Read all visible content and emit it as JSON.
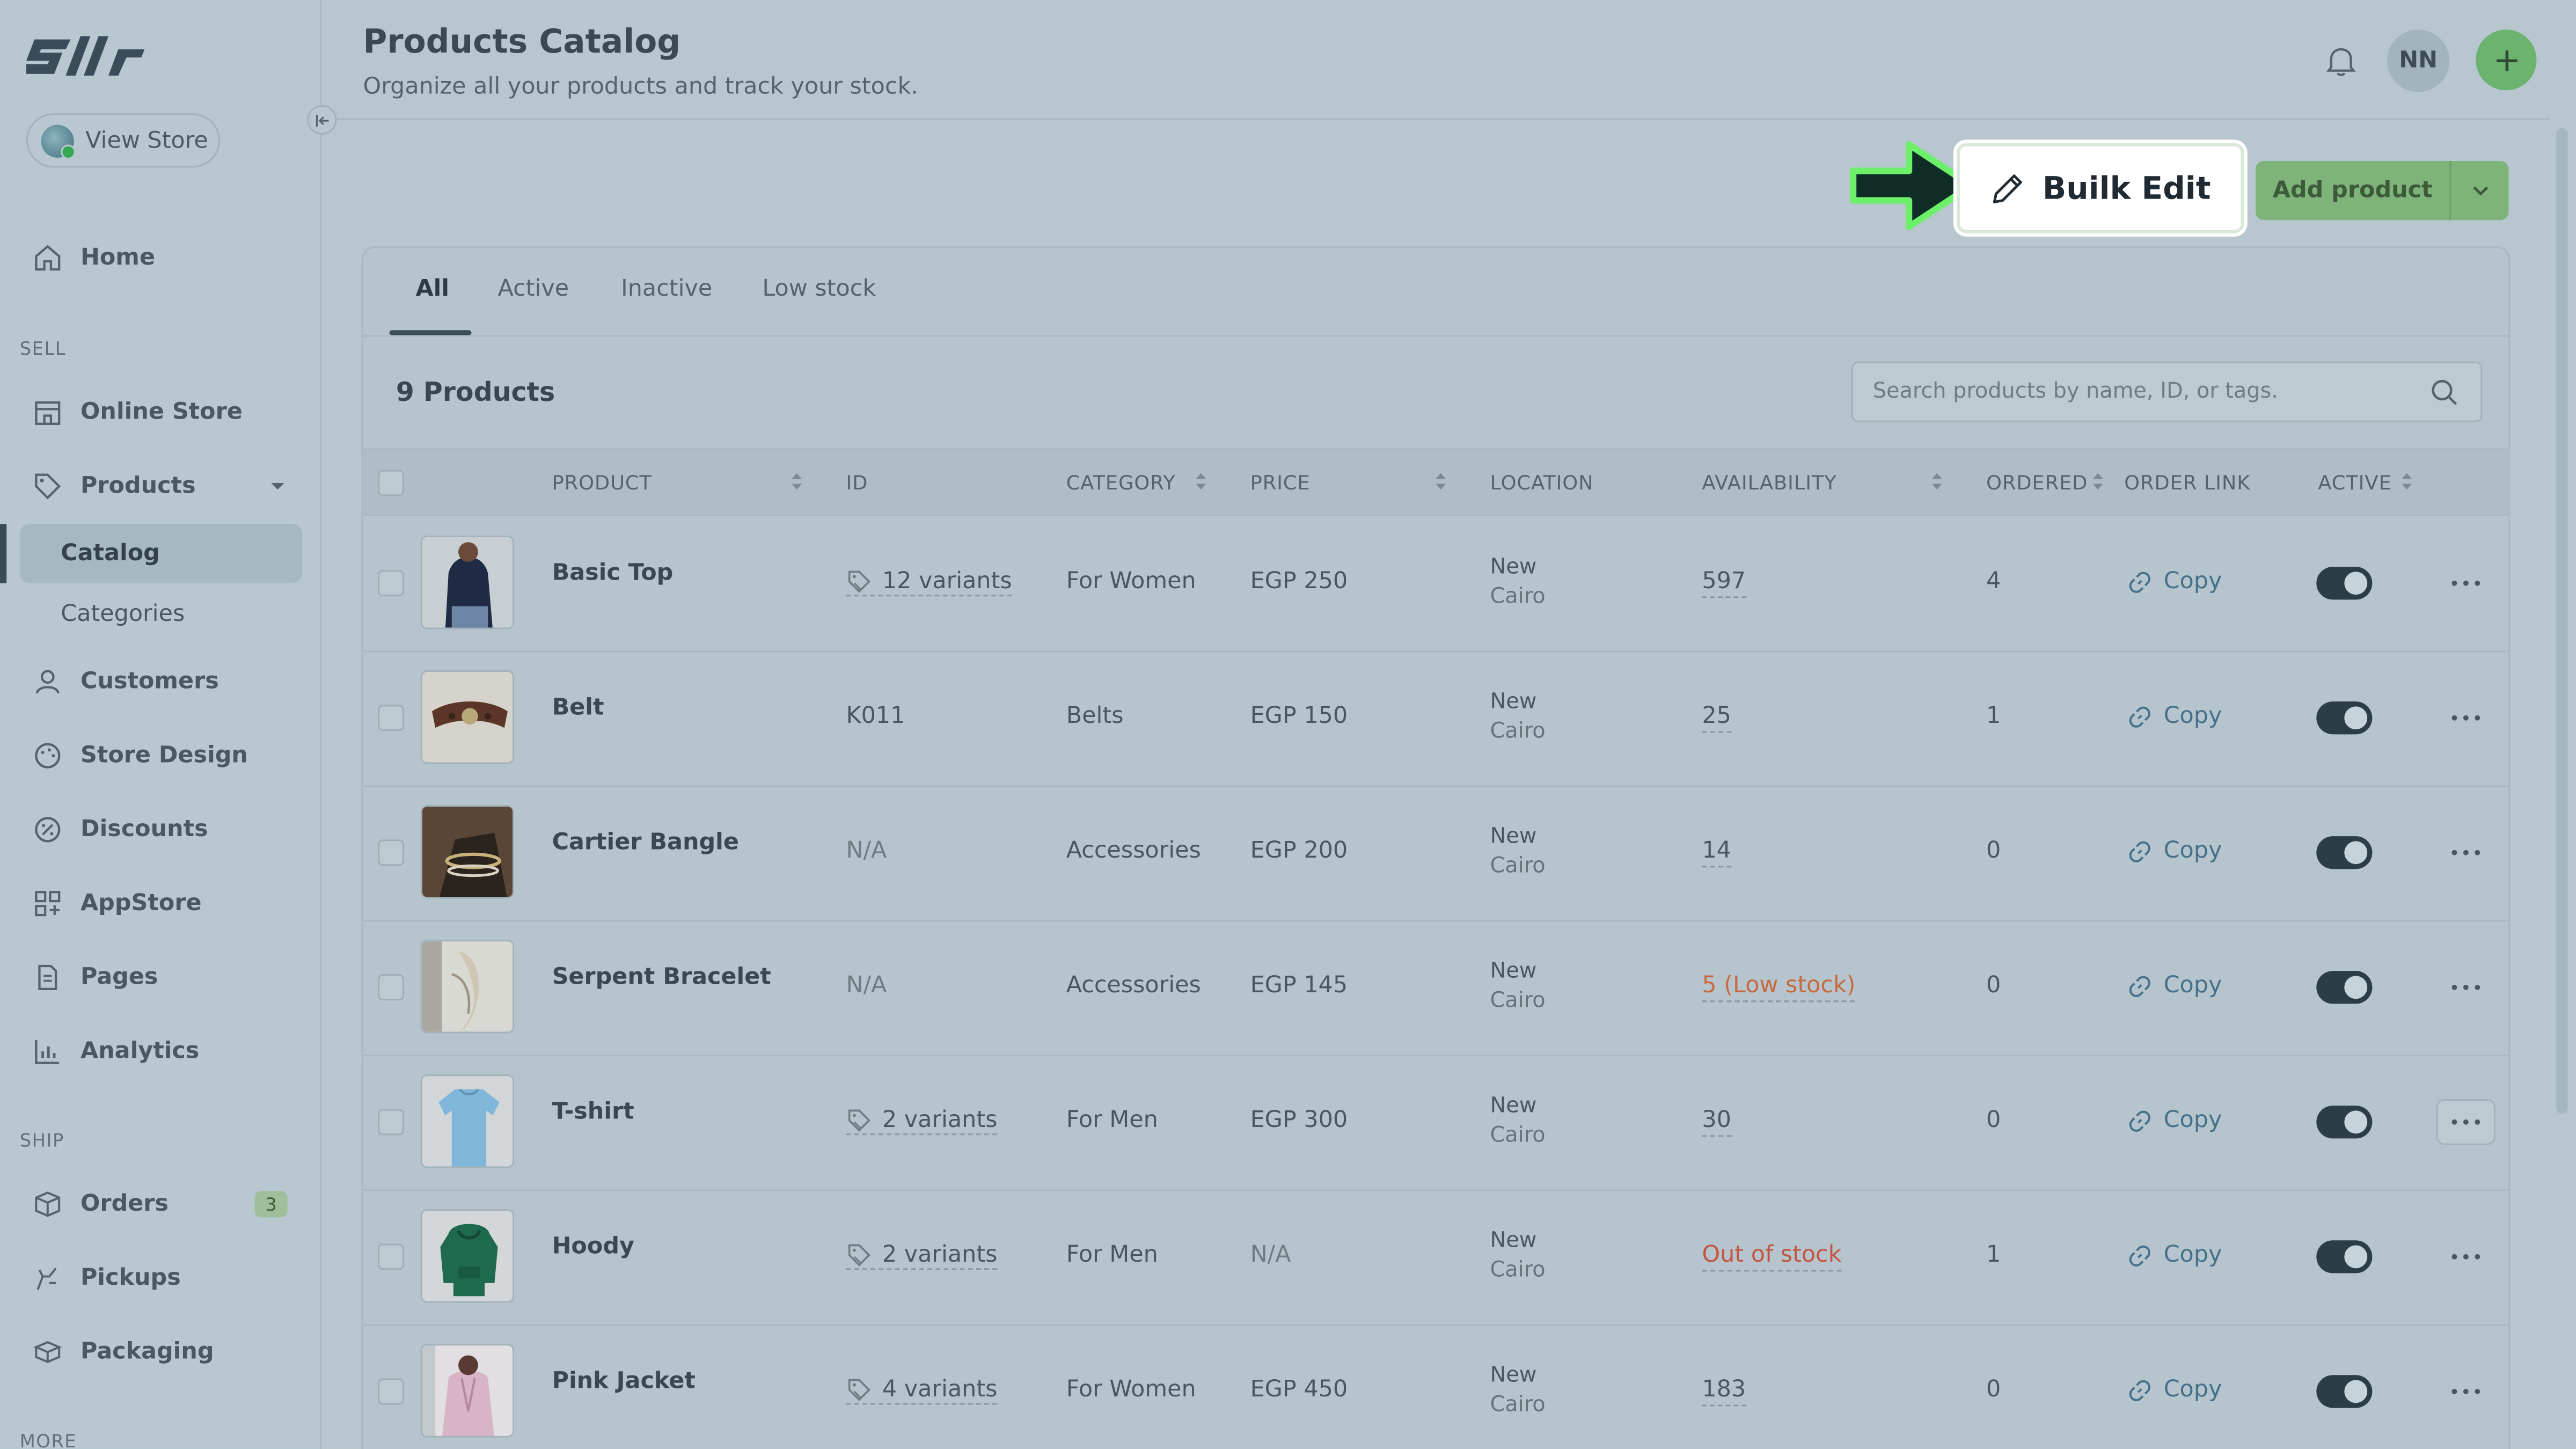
{
  "sidebar": {
    "brand": "Sllr",
    "view_store": "View Store",
    "home": "Home",
    "sell_label": "SELL",
    "online_store": "Online Store",
    "products": "Products",
    "catalog": "Catalog",
    "categories": "Categories",
    "customers": "Customers",
    "store_design": "Store Design",
    "discounts": "Discounts",
    "appstore": "AppStore",
    "pages": "Pages",
    "analytics": "Analytics",
    "ship_label": "SHIP",
    "orders": "Orders",
    "orders_badge": "3",
    "pickups": "Pickups",
    "packaging": "Packaging",
    "more_label": "MORE"
  },
  "header": {
    "title": "Products Catalog",
    "subtitle": "Organize all your products and track your stock.",
    "avatar_initials": "NN"
  },
  "actions": {
    "bulk_edit": "Builk Edit",
    "add_product": "Add product"
  },
  "tabs": [
    "All",
    "Active",
    "Inactive",
    "Low stock"
  ],
  "products_count": "9 Products",
  "search": {
    "placeholder": "Search products by name, ID, or tags."
  },
  "columns": [
    "PRODUCT",
    "ID",
    "CATEGORY",
    "PRICE",
    "LOCATION",
    "AVAILABILITY",
    "ORDERED",
    "ORDER LINK",
    "ACTIVE"
  ],
  "rows": [
    {
      "name": "Basic Top",
      "id": "12 variants",
      "id_variants": true,
      "category": "For Women",
      "price": "EGP 250",
      "loc1": "New",
      "loc2": "Cairo",
      "availability": "597",
      "ordered": "4",
      "link": "Copy",
      "active": true
    },
    {
      "name": "Belt",
      "id": "K011",
      "id_variants": false,
      "category": "Belts",
      "price": "EGP 150",
      "loc1": "New",
      "loc2": "Cairo",
      "availability": "25",
      "ordered": "1",
      "link": "Copy",
      "active": true
    },
    {
      "name": "Cartier Bangle",
      "id": "N/A",
      "id_variants": false,
      "category": "Accessories",
      "price": "EGP 200",
      "loc1": "New",
      "loc2": "Cairo",
      "availability": "14",
      "ordered": "0",
      "link": "Copy",
      "active": true
    },
    {
      "name": "Serpent Bracelet",
      "id": "N/A",
      "id_variants": false,
      "category": "Accessories",
      "price": "EGP 145",
      "loc1": "New",
      "loc2": "Cairo",
      "availability": "5 (Low stock)",
      "ordered": "0",
      "link": "Copy",
      "active": true
    },
    {
      "name": "T-shirt",
      "id": "2 variants",
      "id_variants": true,
      "category": "For Men",
      "price": "EGP 300",
      "loc1": "New",
      "loc2": "Cairo",
      "availability": "30",
      "ordered": "0",
      "link": "Copy",
      "active": true
    },
    {
      "name": "Hoody",
      "id": "2 variants",
      "id_variants": true,
      "category": "For Men",
      "price": "N/A",
      "loc1": "New",
      "loc2": "Cairo",
      "availability": "Out of stock",
      "ordered": "1",
      "link": "Copy",
      "active": true
    },
    {
      "name": "Pink Jacket",
      "id": "4 variants",
      "id_variants": true,
      "category": "For Women",
      "price": "EGP 450",
      "loc1": "New",
      "loc2": "Cairo",
      "availability": "183",
      "ordered": "0",
      "link": "Copy",
      "active": true
    }
  ],
  "colors": {
    "accent_green": "#6bb36e",
    "low_stock": "#c86a3f",
    "out_of_stock": "#c4553f",
    "link": "#46718a"
  }
}
